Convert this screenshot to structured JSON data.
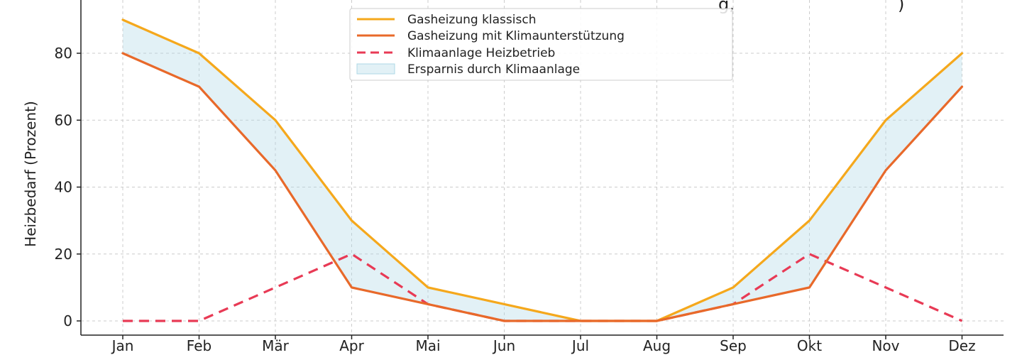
{
  "chart_data": {
    "type": "line",
    "title_fragment_left": "g, ",
    "title_fragment_right": ")",
    "ylabel": "Heizbedarf (Prozent)",
    "xlabel": "",
    "categories": [
      "Jan",
      "Feb",
      "Mär",
      "Apr",
      "Mai",
      "Jun",
      "Jul",
      "Aug",
      "Sep",
      "Okt",
      "Nov",
      "Dez"
    ],
    "ylim": [
      -4,
      97
    ],
    "yticks": [
      0,
      20,
      40,
      60,
      80
    ],
    "grid": true,
    "legend_position": "top-center",
    "series": [
      {
        "name": "Gasheizung klassisch",
        "values": [
          90,
          80,
          60,
          30,
          10,
          5,
          0,
          0,
          10,
          30,
          60,
          80
        ],
        "color": "#f5a81c",
        "style": "solid"
      },
      {
        "name": "Gasheizung mit Klimaunterstützung",
        "values": [
          80,
          70,
          45,
          10,
          5,
          0,
          0,
          0,
          5,
          10,
          45,
          70
        ],
        "color": "#e8692a",
        "style": "solid"
      },
      {
        "name": "Klimaanlage Heizbetrieb",
        "values": [
          0,
          0,
          10,
          20,
          5,
          0,
          0,
          0,
          5,
          20,
          10,
          0
        ],
        "color": "#e83a55",
        "style": "dashed"
      }
    ],
    "fill_between": {
      "name": "Ersparnis durch Klimaanlage",
      "color": "#add8e6"
    }
  }
}
